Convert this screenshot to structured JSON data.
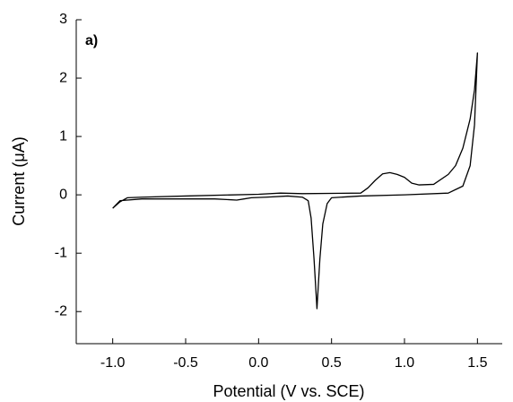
{
  "chart_data": {
    "type": "line",
    "annotation": "a)",
    "xlabel": "Potential (V vs. SCE)",
    "ylabel": "Current (μA)",
    "x": [
      -1.0,
      -0.95,
      -0.9,
      -0.8,
      -0.5,
      0.0,
      0.15,
      0.3,
      0.7,
      0.75,
      0.8,
      0.85,
      0.9,
      0.95,
      1.0,
      1.05,
      1.1,
      1.2,
      1.3,
      1.35,
      1.4,
      1.45,
      1.48,
      1.5,
      1.48,
      1.45,
      1.4,
      1.3,
      1.0,
      0.7,
      0.5,
      0.47,
      0.44,
      0.42,
      0.4,
      0.38,
      0.36,
      0.34,
      0.3,
      0.2,
      0.05,
      -0.05,
      -0.1,
      -0.15,
      -0.3,
      -0.8,
      -0.95,
      -1.0
    ],
    "values": [
      -0.23,
      -0.12,
      -0.05,
      -0.04,
      -0.02,
      0.01,
      0.03,
      0.02,
      0.03,
      0.12,
      0.25,
      0.36,
      0.38,
      0.35,
      0.3,
      0.2,
      0.17,
      0.18,
      0.35,
      0.5,
      0.8,
      1.3,
      1.8,
      2.43,
      1.2,
      0.5,
      0.15,
      0.03,
      0.0,
      -0.02,
      -0.05,
      -0.15,
      -0.5,
      -1.1,
      -1.95,
      -1.1,
      -0.4,
      -0.1,
      -0.04,
      -0.02,
      -0.04,
      -0.05,
      -0.07,
      -0.09,
      -0.07,
      -0.07,
      -0.1,
      -0.23
    ],
    "color": "#000000",
    "xlim": [
      -1.25,
      1.67
    ],
    "ylim": [
      -2.55,
      3
    ],
    "xticks": [
      {
        "value": -1,
        "label": "-1.0"
      },
      -0.5,
      {
        "value": 0,
        "label": "0.0"
      },
      0.5,
      {
        "value": 1,
        "label": "1.0"
      },
      1.5
    ],
    "yticks": [
      -2,
      -1,
      0,
      1,
      2,
      3
    ]
  }
}
